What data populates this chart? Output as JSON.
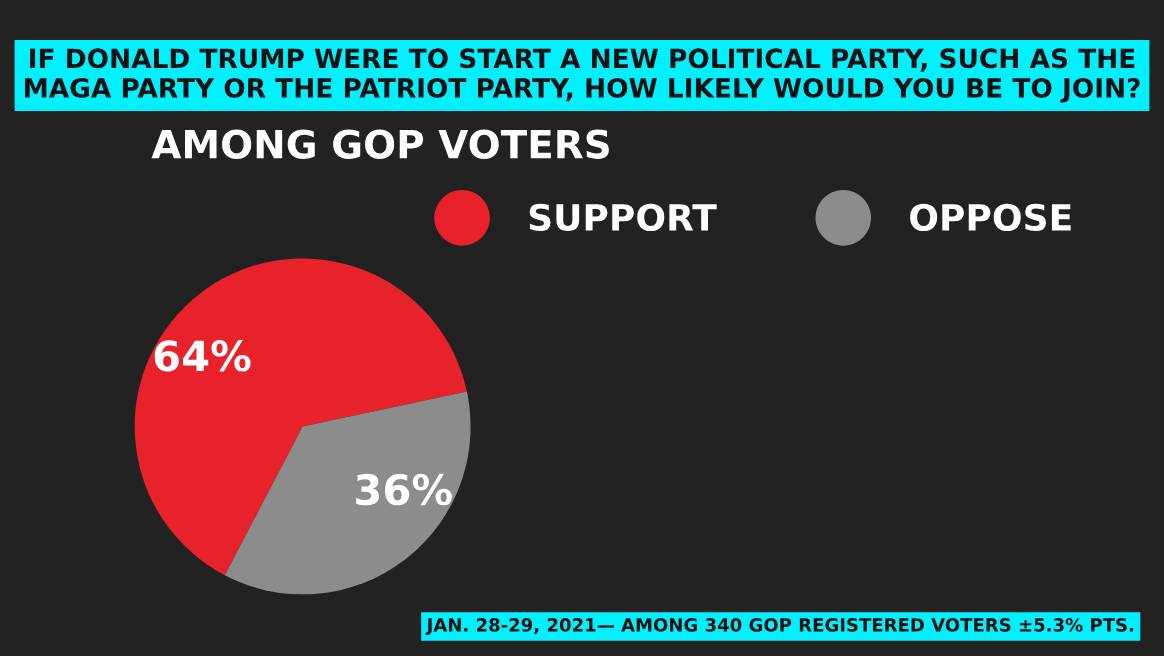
{
  "chart_data": {
    "type": "pie",
    "title": "IF DONALD TRUMP WERE TO START A NEW POLITICAL PARTY, SUCH AS THE\nMAGA PARTY OR THE PATRIOT PARTY, HOW LIKELY WOULD YOU BE TO JOIN?",
    "subtitle": "AMONG GOP VOTERS",
    "categories": [
      "SUPPORT",
      "OPPOSE"
    ],
    "values": [
      64,
      36
    ],
    "colors": [
      "#e8222b",
      "#8c8c8c"
    ],
    "value_labels": [
      "64%",
      "36%"
    ],
    "legend": "top right",
    "annotations": [
      "JAN. 28-29, 2021— AMONG 340 GOP REGISTERED VOTERS ±5.3% PTS."
    ]
  }
}
